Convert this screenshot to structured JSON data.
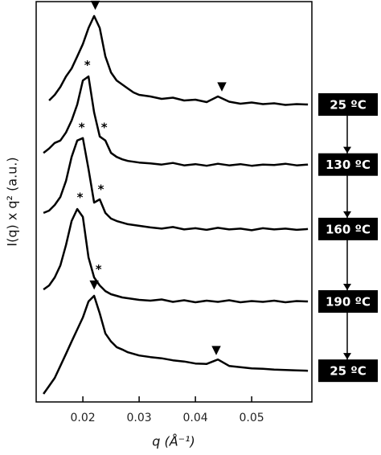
{
  "chart_data": {
    "type": "line",
    "xlabel": "q (Å⁻¹)",
    "ylabel": "I(q) x q² (a.u.)",
    "xlim": [
      0.0117,
      0.0607
    ],
    "ylim": [
      0,
      10
    ],
    "xticks": [
      0.02,
      0.03,
      0.04,
      0.05
    ],
    "x": [
      0.013,
      0.014,
      0.015,
      0.016,
      0.017,
      0.018,
      0.019,
      0.02,
      0.021,
      0.022,
      0.023,
      0.024,
      0.025,
      0.026,
      0.027,
      0.028,
      0.029,
      0.03,
      0.032,
      0.034,
      0.036,
      0.038,
      0.04,
      0.042,
      0.044,
      0.046,
      0.048,
      0.05,
      0.052,
      0.054,
      0.056,
      0.058,
      0.06
    ],
    "series": [
      {
        "name": "25 ºC",
        "color": "#000000",
        "values": [
          null,
          7.53,
          7.67,
          7.87,
          8.13,
          8.33,
          8.63,
          8.94,
          9.34,
          9.64,
          9.34,
          8.63,
          8.23,
          8.03,
          7.93,
          7.83,
          7.73,
          7.67,
          7.63,
          7.57,
          7.6,
          7.53,
          7.55,
          7.49,
          7.63,
          7.5,
          7.45,
          7.48,
          7.44,
          7.46,
          7.42,
          7.44,
          7.43
        ]
      },
      {
        "name": "130 ºC",
        "color": "#000000",
        "values": [
          6.22,
          6.33,
          6.47,
          6.53,
          6.73,
          7.03,
          7.43,
          8.03,
          8.13,
          7.23,
          6.63,
          6.53,
          6.22,
          6.12,
          6.06,
          6.02,
          6.0,
          5.98,
          5.96,
          5.93,
          5.97,
          5.91,
          5.94,
          5.9,
          5.95,
          5.91,
          5.94,
          5.9,
          5.93,
          5.92,
          5.95,
          5.91,
          5.93
        ]
      },
      {
        "name": "160 ºC",
        "color": "#000000",
        "values": [
          4.72,
          4.78,
          4.92,
          5.12,
          5.52,
          6.12,
          6.53,
          6.59,
          5.82,
          4.98,
          5.06,
          4.72,
          4.58,
          4.52,
          4.48,
          4.44,
          4.42,
          4.4,
          4.36,
          4.33,
          4.37,
          4.31,
          4.34,
          4.3,
          4.35,
          4.31,
          4.33,
          4.29,
          4.34,
          4.31,
          4.33,
          4.3,
          4.32
        ]
      },
      {
        "name": "190 ºC",
        "color": "#000000",
        "values": [
          2.81,
          2.91,
          3.11,
          3.41,
          3.92,
          4.52,
          4.82,
          4.62,
          3.61,
          3.11,
          2.91,
          2.77,
          2.69,
          2.65,
          2.61,
          2.59,
          2.57,
          2.55,
          2.53,
          2.56,
          2.5,
          2.54,
          2.49,
          2.53,
          2.5,
          2.54,
          2.49,
          2.52,
          2.5,
          2.53,
          2.49,
          2.52,
          2.51
        ]
      },
      {
        "name": "25 ºC",
        "color": "#000000",
        "values": [
          0.2,
          0.4,
          0.6,
          0.9,
          1.2,
          1.51,
          1.81,
          2.11,
          2.51,
          2.65,
          2.21,
          1.71,
          1.51,
          1.37,
          1.31,
          1.24,
          1.2,
          1.16,
          1.12,
          1.09,
          1.04,
          1.01,
          0.96,
          0.95,
          1.06,
          0.9,
          0.87,
          0.84,
          0.83,
          0.81,
          0.8,
          0.79,
          0.78
        ]
      }
    ],
    "annotations": [
      {
        "text": "▼",
        "x": 0.0222,
        "y": 9.92
      },
      {
        "text": "▼",
        "x": 0.0447,
        "y": 7.88
      },
      {
        "text": "*",
        "x": 0.0208,
        "y": 8.4
      },
      {
        "text": "*",
        "x": 0.0238,
        "y": 6.85
      },
      {
        "text": "*",
        "x": 0.0198,
        "y": 6.85
      },
      {
        "text": "*",
        "x": 0.0232,
        "y": 5.3
      },
      {
        "text": "*",
        "x": 0.0195,
        "y": 5.1
      },
      {
        "text": "*",
        "x": 0.0228,
        "y": 3.3
      },
      {
        "text": "▼",
        "x": 0.022,
        "y": 2.93
      },
      {
        "text": "▼",
        "x": 0.0437,
        "y": 1.3
      }
    ]
  }
}
